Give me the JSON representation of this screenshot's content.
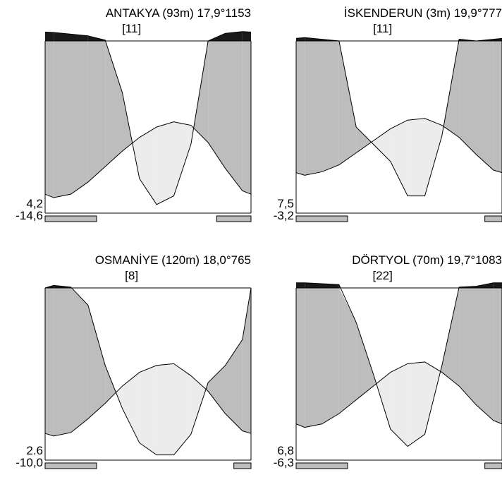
{
  "chart_data": [
    {
      "type": "area",
      "chart_kind": "climate-diagram (Walter–Lieth)",
      "station": "ANTAKYA (93m)",
      "years": "[11]",
      "mean_temp": "17,9°",
      "annual_precip": "1153",
      "label_low": "4,2",
      "label_min": "-14,6",
      "months": [
        "1",
        "2",
        "3",
        "4",
        "5",
        "6",
        "7",
        "8",
        "9",
        "10",
        "11",
        "12"
      ],
      "temperature": [
        4.5,
        5.5,
        9.0,
        13.5,
        18.0,
        22.0,
        25.0,
        26.5,
        25.5,
        20.5,
        13.0,
        6.5
      ],
      "precipitation": [
        200,
        180,
        160,
        110,
        70,
        20,
        5,
        10,
        40,
        100,
        190,
        210
      ],
      "frost_bars": [
        "Jan",
        "Feb",
        "Mar",
        "Nov",
        "Dec"
      ],
      "colors": {
        "humid": "#bdbdbd",
        "arid": "#ececec",
        "perhumid": "#1a1a1a",
        "frost": "#bdbdbd"
      }
    },
    {
      "type": "area",
      "chart_kind": "climate-diagram (Walter–Lieth)",
      "station": "İSKENDERUN (3m)",
      "years": "[11]",
      "mean_temp": "19,9°",
      "annual_precip": "777",
      "label_low": "7,5",
      "label_min": "-3,2",
      "months": [
        "1",
        "2",
        "3",
        "4",
        "5",
        "6",
        "7",
        "8",
        "9",
        "10",
        "11",
        "12"
      ],
      "temperature": [
        11.0,
        12.0,
        14.0,
        17.5,
        21.0,
        24.5,
        27.0,
        27.5,
        25.5,
        22.0,
        17.0,
        12.5
      ],
      "precipitation": [
        140,
        120,
        100,
        50,
        40,
        30,
        10,
        10,
        45,
        120,
        100,
        120
      ],
      "frost_bars": [
        "Jan",
        "Feb",
        "Mar",
        "Dec"
      ],
      "colors": {
        "humid": "#bdbdbd",
        "arid": "#ececec",
        "perhumid": "#1a1a1a",
        "frost": "#bdbdbd"
      }
    },
    {
      "type": "area",
      "chart_kind": "climate-diagram (Walter–Lieth)",
      "station": "OSMANİYE (120m)",
      "years": "[8]",
      "mean_temp": "18,0°",
      "annual_precip": "765",
      "label_low": "2.6",
      "label_min": "-10,0",
      "months": [
        "1",
        "2",
        "3",
        "4",
        "5",
        "6",
        "7",
        "8",
        "9",
        "10",
        "11",
        "12"
      ],
      "temperature": [
        7.0,
        8.0,
        12.0,
        16.5,
        21.5,
        25.5,
        27.5,
        28.0,
        24.5,
        20.0,
        13.5,
        8.5
      ],
      "precipitation": [
        130,
        110,
        90,
        55,
        30,
        10,
        3,
        3,
        15,
        45,
        55,
        70
      ],
      "frost_bars": [
        "Jan",
        "Feb",
        "Mar",
        "Dec"
      ],
      "colors": {
        "humid": "#bdbdbd",
        "arid": "#ececec",
        "perhumid": "#1a1a1a",
        "frost": "#bdbdbd"
      }
    },
    {
      "type": "area",
      "chart_kind": "climate-diagram (Walter–Lieth)",
      "station": "DÖRTYOL (70m)",
      "years": "[22]",
      "mean_temp": "19,7°",
      "annual_precip": "1083",
      "label_low": "6,8",
      "label_min": "-6,3",
      "months": [
        "1",
        "2",
        "3",
        "4",
        "5",
        "6",
        "7",
        "8",
        "9",
        "10",
        "11",
        "12"
      ],
      "temperature": [
        9.5,
        10.5,
        13.5,
        17.5,
        21.5,
        25.5,
        28.0,
        28.5,
        25.5,
        21.5,
        16.0,
        11.5
      ],
      "precipitation": [
        160,
        150,
        140,
        80,
        50,
        18,
        8,
        15,
        55,
        110,
        120,
        160
      ],
      "frost_bars": [
        "Jan",
        "Feb",
        "Mar",
        "Dec"
      ],
      "colors": {
        "humid": "#bdbdbd",
        "arid": "#ececec",
        "perhumid": "#1a1a1a",
        "frost": "#bdbdbd"
      }
    }
  ]
}
